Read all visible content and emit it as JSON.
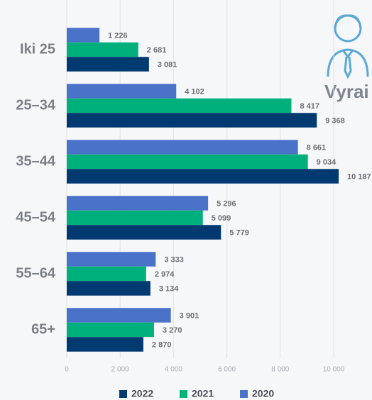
{
  "chart_data": {
    "type": "bar",
    "orientation": "horizontal",
    "annotation": "Vyrai",
    "categories": [
      "Iki 25",
      "25–34",
      "35–44",
      "45–54",
      "55–64",
      "65+"
    ],
    "series": [
      {
        "name": "2020",
        "color": "#4a72c9",
        "values": [
          1226,
          4102,
          8661,
          5296,
          3333,
          3901
        ],
        "value_labels": [
          "1 226",
          "4 102",
          "8 661",
          "5 296",
          "3 333",
          "3 901"
        ]
      },
      {
        "name": "2021",
        "color": "#00b07c",
        "values": [
          2681,
          8417,
          9034,
          5099,
          2974,
          3270
        ],
        "value_labels": [
          "2 681",
          "8 417",
          "9 034",
          "5 099",
          "2 974",
          "3 270"
        ]
      },
      {
        "name": "2022",
        "color": "#003a70",
        "values": [
          3081,
          9368,
          10187,
          5779,
          3134,
          2870
        ],
        "value_labels": [
          "3 081",
          "9 368",
          "10 187",
          "5 779",
          "3 134",
          "2 870"
        ]
      }
    ],
    "xlim": [
      0,
      11400
    ],
    "xticks": [
      0,
      {
        "value": 2000,
        "label": "2 000"
      },
      {
        "value": 4000,
        "label": "4 000"
      },
      {
        "value": 6000,
        "label": "6 000"
      },
      {
        "value": 8000,
        "label": "8 000"
      },
      {
        "value": 10000,
        "label": "10 000"
      }
    ],
    "grid": true,
    "legend": "bottom"
  }
}
